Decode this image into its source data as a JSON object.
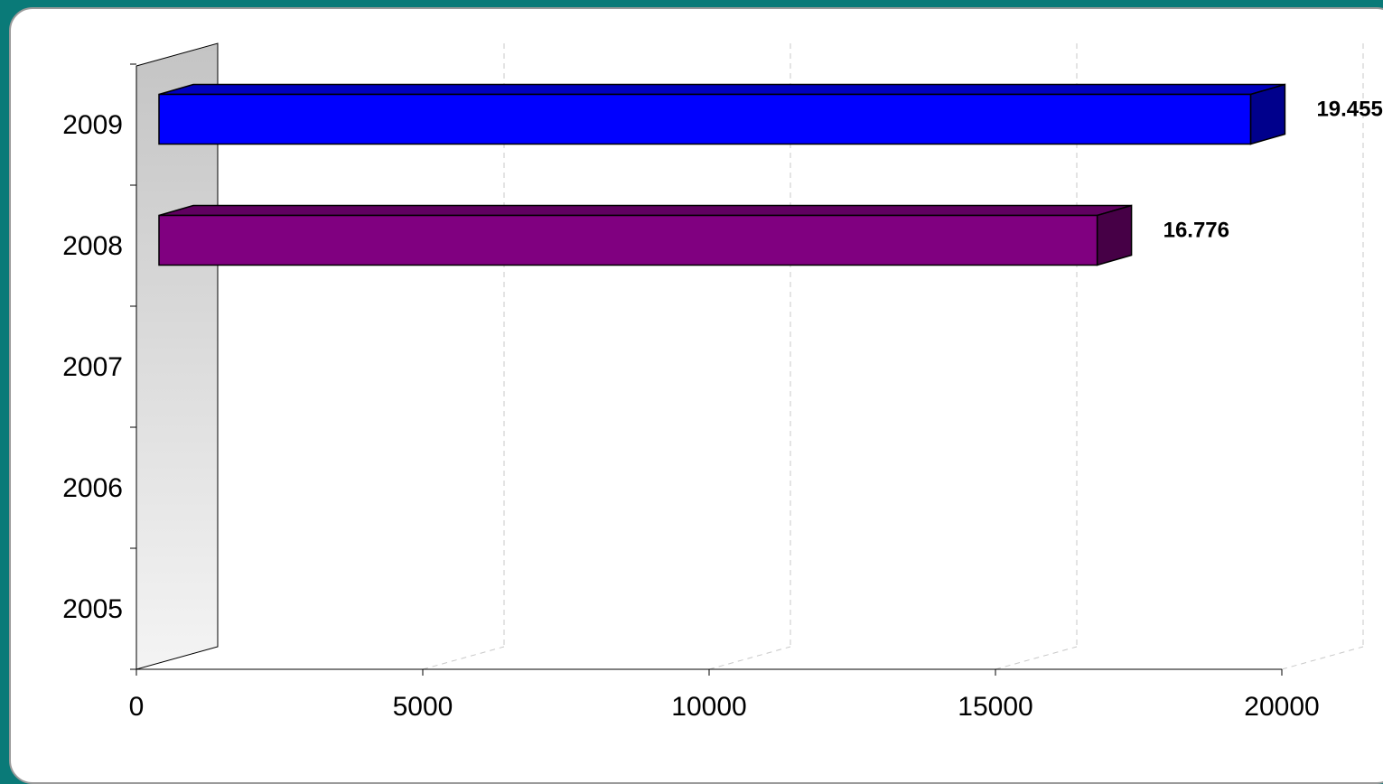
{
  "chart_data": {
    "type": "bar",
    "orientation": "horizontal",
    "style": "3d",
    "title": "",
    "xlabel": "",
    "ylabel": "",
    "categories": [
      "2005",
      "2006",
      "2007",
      "2008",
      "2009"
    ],
    "values": [
      null,
      null,
      null,
      16776,
      19455
    ],
    "data_labels": [
      "",
      "",
      "",
      "16.776",
      "19.455"
    ],
    "bar_colors": [
      "#0000ff",
      "#0000ff",
      "#0000ff",
      "#800080",
      "#0000ff"
    ],
    "xlim": [
      0,
      20000
    ],
    "x_ticks": [
      "0",
      "5000",
      "10000",
      "15000",
      "20000"
    ],
    "x_tick_values": [
      0,
      5000,
      10000,
      15000,
      20000
    ],
    "grid": "vertical-dashed",
    "legend": "none"
  }
}
